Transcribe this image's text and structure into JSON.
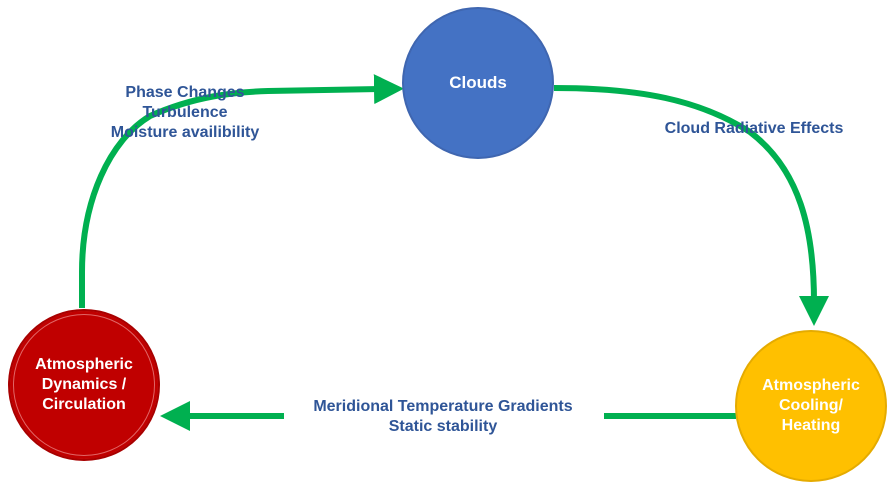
{
  "nodes": {
    "clouds": "Clouds",
    "cooling": "Atmospheric\nCooling/\nHeating",
    "dynamics": "Atmospheric\nDynamics /\nCirculation"
  },
  "edges": {
    "dynamics_to_clouds": [
      "Phase Changes",
      "Turbulence",
      "Moisture availibility"
    ],
    "clouds_to_cooling": [
      "Cloud Radiative Effects"
    ],
    "cooling_to_dynamics": [
      "Meridional Temperature Gradients",
      "Static stability"
    ]
  },
  "colors": {
    "arrow": "#00b050",
    "clouds": "#4472c4",
    "cooling": "#ffc000",
    "dynamics": "#c00000",
    "label_text": "#2f5597"
  }
}
